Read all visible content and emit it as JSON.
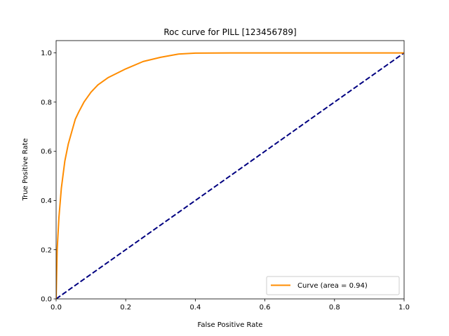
{
  "chart_data": {
    "type": "line",
    "title": "Roc curve for PILL [123456789]",
    "xlabel": "False Positive Rate",
    "ylabel": "True Positive Rate",
    "xlim": [
      0.0,
      1.0
    ],
    "ylim": [
      0.0,
      1.05
    ],
    "x_ticks": [
      "0.0",
      "0.2",
      "0.4",
      "0.6",
      "0.8",
      "1.0"
    ],
    "y_ticks": [
      "0.0",
      "0.2",
      "0.4",
      "0.6",
      "0.8",
      "1.0"
    ],
    "grid": false,
    "legend": {
      "placement": "lower-right"
    },
    "series": [
      {
        "name": "Curve (area = 0.94)",
        "color": "#ff8c00",
        "style": "solid",
        "x": [
          0.0,
          0.003,
          0.008,
          0.015,
          0.025,
          0.035,
          0.045,
          0.055,
          0.065,
          0.08,
          0.1,
          0.12,
          0.15,
          0.2,
          0.25,
          0.3,
          0.35,
          0.4,
          0.5,
          0.6,
          0.8,
          1.0
        ],
        "y": [
          0.0,
          0.2,
          0.33,
          0.45,
          0.56,
          0.63,
          0.68,
          0.73,
          0.76,
          0.8,
          0.84,
          0.87,
          0.9,
          0.935,
          0.965,
          0.982,
          0.995,
          0.999,
          1.0,
          1.0,
          1.0,
          1.0
        ]
      },
      {
        "name": "",
        "color": "#000080",
        "style": "dashed",
        "x": [
          0.0,
          1.0
        ],
        "y": [
          0.0,
          1.0
        ]
      }
    ]
  }
}
